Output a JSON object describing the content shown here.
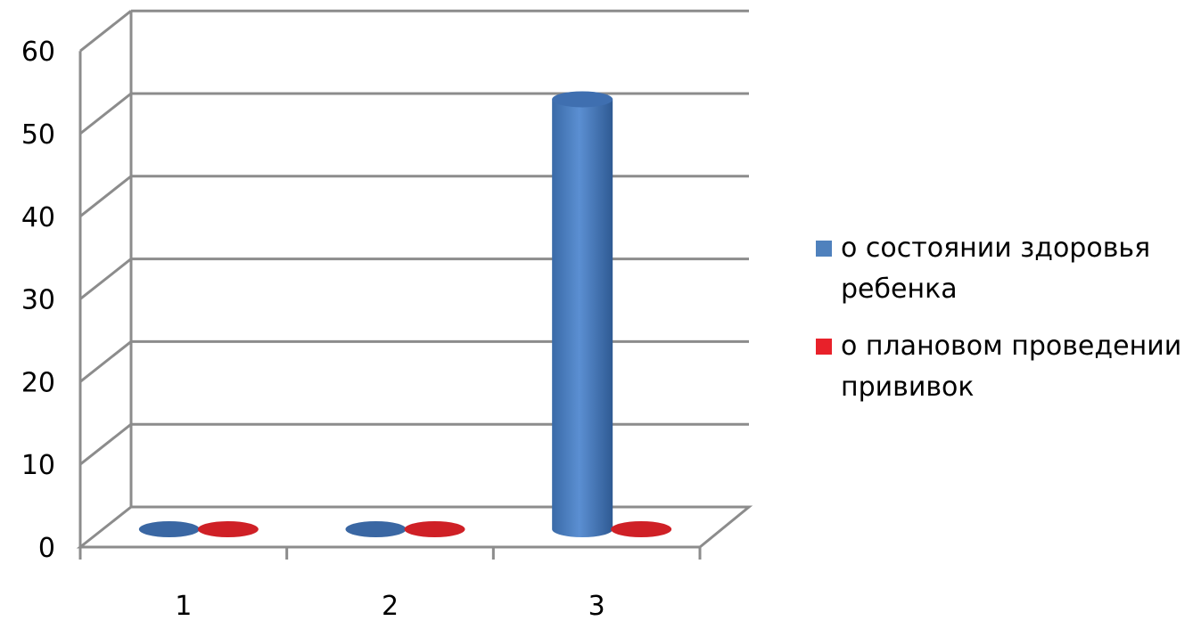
{
  "chart_data": {
    "type": "bar",
    "title": "",
    "xlabel": "",
    "ylabel": "",
    "categories": [
      "1",
      "2",
      "3"
    ],
    "ylim": [
      0,
      60
    ],
    "yticks": [
      "0",
      "10",
      "20",
      "30",
      "40",
      "50",
      "60"
    ],
    "grid": true,
    "legend_position": "right",
    "series": [
      {
        "name": "о состоянии здоровья ребенка",
        "values": [
          0,
          0,
          52
        ],
        "color": "#4f81bd"
      },
      {
        "name": "о плановом проведении прививок",
        "values": [
          0,
          0,
          0
        ],
        "color": "#e8212a"
      }
    ]
  }
}
